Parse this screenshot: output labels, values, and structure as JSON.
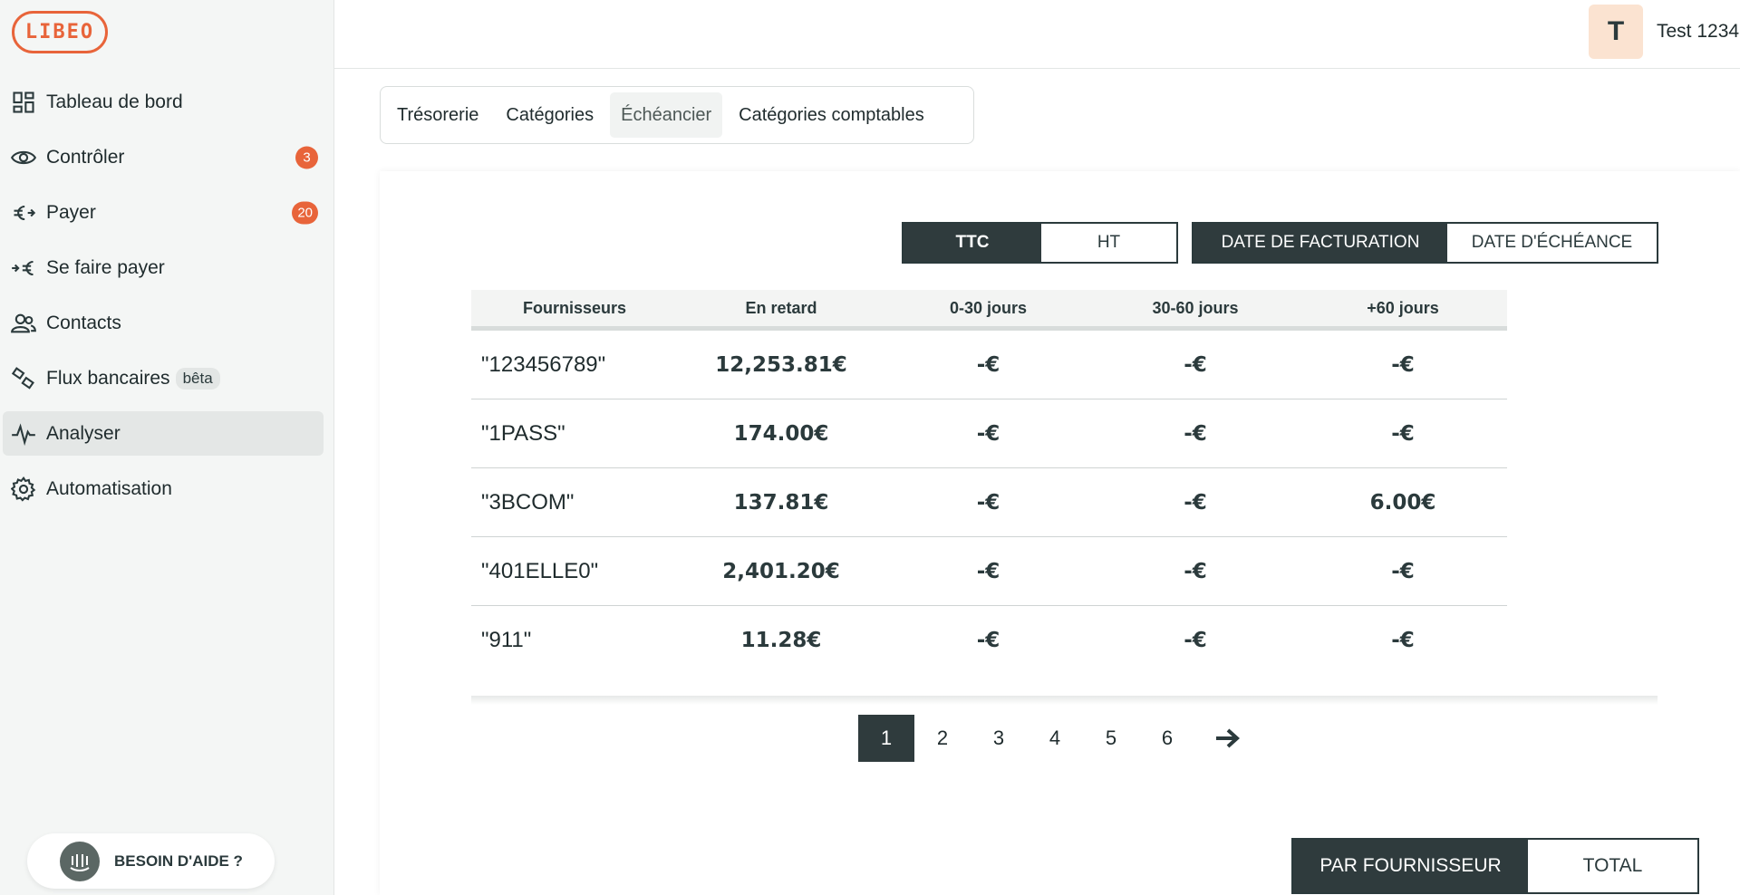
{
  "app": {
    "logo_text": "LIBEO"
  },
  "sidebar": {
    "items": [
      {
        "label": "Tableau de bord",
        "icon": "dashboard-icon"
      },
      {
        "label": "Contrôler",
        "icon": "eye-icon",
        "badge": "3"
      },
      {
        "label": "Payer",
        "icon": "euro-out-icon",
        "badge": "20"
      },
      {
        "label": "Se faire payer",
        "icon": "euro-in-icon"
      },
      {
        "label": "Contacts",
        "icon": "contacts-icon"
      },
      {
        "label": "Flux bancaires",
        "icon": "bank-flow-icon",
        "tag": "bêta"
      },
      {
        "label": "Analyser",
        "icon": "pulse-icon",
        "active": true
      },
      {
        "label": "Automatisation",
        "icon": "gear-icon"
      }
    ],
    "help_label": "BESOIN D'AIDE ?"
  },
  "header": {
    "avatar_letter": "T",
    "username": "Test 1234"
  },
  "tabs": [
    {
      "label": "Trésorerie"
    },
    {
      "label": "Catégories"
    },
    {
      "label": "Échéancier",
      "active": true
    },
    {
      "label": "Catégories comptables"
    }
  ],
  "amount_toggle": {
    "ttc": "TTC",
    "ht": "HT",
    "selected": "TTC"
  },
  "date_toggle": {
    "invoice_date": "DATE DE FACTURATION",
    "due_date": "DATE D'ÉCHÉANCE",
    "selected": "DATE DE FACTURATION"
  },
  "table": {
    "headers": [
      "Fournisseurs",
      "En retard",
      "0-30 jours",
      "30-60 jours",
      "+60 jours"
    ],
    "rows": [
      [
        "\"123456789\"",
        "12,253.81€",
        "-€",
        "-€",
        "-€"
      ],
      [
        "\"1PASS\"",
        "174.00€",
        "-€",
        "-€",
        "-€"
      ],
      [
        "\"3BCOM\"",
        "137.81€",
        "-€",
        "-€",
        "6.00€"
      ],
      [
        "\"401ELLE0\"",
        "2,401.20€",
        "-€",
        "-€",
        "-€"
      ],
      [
        "\"911\"",
        "11.28€",
        "-€",
        "-€",
        "-€"
      ]
    ]
  },
  "pagination": {
    "pages": [
      "1",
      "2",
      "3",
      "4",
      "5",
      "6"
    ],
    "current": "1",
    "next_icon": "arrow-right-icon"
  },
  "group_toggle": {
    "by_supplier": "PAR FOURNISSEUR",
    "total": "TOTAL",
    "selected": "PAR FOURNISSEUR"
  },
  "colors": {
    "accent": "#e8643a",
    "dark": "#2f3b3d",
    "sidebar_bg": "#f4f6f5"
  }
}
